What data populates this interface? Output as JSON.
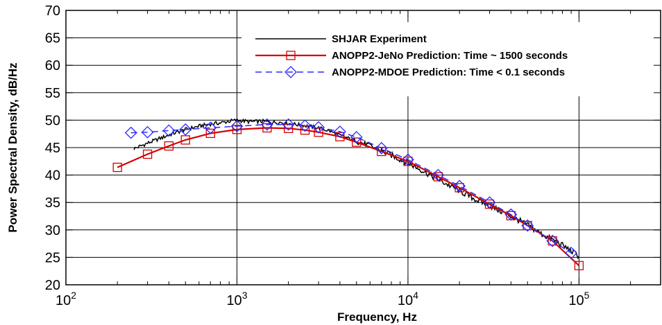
{
  "chart_data": {
    "type": "line",
    "title": "",
    "xlabel": "Frequency, Hz",
    "ylabel": "Power Spectral Density, dB/Hz",
    "x_scale": "log",
    "xlim": [
      100,
      300000
    ],
    "ylim": [
      20,
      70
    ],
    "x_ticks": [
      {
        "value": 100,
        "base": "10",
        "exp": "2"
      },
      {
        "value": 1000,
        "base": "10",
        "exp": "3"
      },
      {
        "value": 10000,
        "base": "10",
        "exp": "4"
      },
      {
        "value": 100000,
        "base": "10",
        "exp": "5"
      }
    ],
    "y_ticks": [
      20,
      25,
      30,
      35,
      40,
      45,
      50,
      55,
      60,
      65,
      70
    ],
    "grid": true,
    "legend_position": "top-right",
    "series": [
      {
        "name": "SHJAR Experiment",
        "color": "#000000",
        "style": "solid",
        "marker": "none",
        "x": [
          250,
          300,
          400,
          500,
          600,
          700,
          800,
          900,
          1000,
          1200,
          1400,
          1600,
          1800,
          2000,
          2500,
          3000,
          3500,
          4000,
          5000,
          6000,
          7000,
          8000,
          10000,
          12000,
          15000,
          20000,
          25000,
          30000,
          40000,
          50000,
          60000,
          70000,
          80000,
          90000,
          100000
        ],
        "y": [
          44.8,
          45.8,
          47.3,
          48.3,
          48.9,
          49.3,
          49.5,
          49.8,
          50.0,
          49.7,
          49.8,
          49.6,
          49.6,
          49.4,
          49.0,
          48.6,
          48.0,
          47.2,
          46.2,
          45.3,
          44.4,
          43.6,
          42.2,
          40.9,
          39.2,
          37.1,
          35.5,
          34.4,
          32.5,
          30.9,
          29.3,
          28.2,
          27.2,
          26.2,
          25.2
        ]
      },
      {
        "name": "ANOPP2-JeNo Prediction: Time ~ 1500 seconds",
        "color": "#d40000",
        "style": "solid",
        "marker": "square",
        "x": [
          200,
          300,
          400,
          500,
          700,
          1000,
          1500,
          2000,
          2500,
          3000,
          4000,
          5000,
          7000,
          10000,
          15000,
          20000,
          30000,
          40000,
          50000,
          70000,
          100000
        ],
        "y": [
          41.4,
          43.8,
          45.3,
          46.4,
          47.6,
          48.3,
          48.6,
          48.5,
          48.2,
          47.8,
          47.0,
          46.0,
          44.3,
          42.5,
          39.7,
          37.7,
          34.7,
          32.6,
          30.8,
          28.0,
          23.5
        ]
      },
      {
        "name": "ANOPP2-MDOE Prediction: Time < 0.1 seconds",
        "color": "#2a2aff",
        "style": "dashed",
        "marker": "diamond",
        "x": [
          240,
          300,
          400,
          500,
          700,
          1000,
          1500,
          2000,
          2500,
          3000,
          4000,
          5000,
          7000,
          10000,
          15000,
          20000,
          30000,
          40000,
          50000,
          70000,
          90000
        ],
        "y": [
          47.7,
          47.8,
          48.1,
          48.3,
          48.6,
          48.9,
          49.2,
          49.2,
          49.0,
          48.7,
          47.9,
          46.9,
          44.9,
          42.8,
          40.0,
          38.0,
          35.0,
          32.8,
          30.8,
          28.0,
          25.8
        ]
      }
    ]
  }
}
